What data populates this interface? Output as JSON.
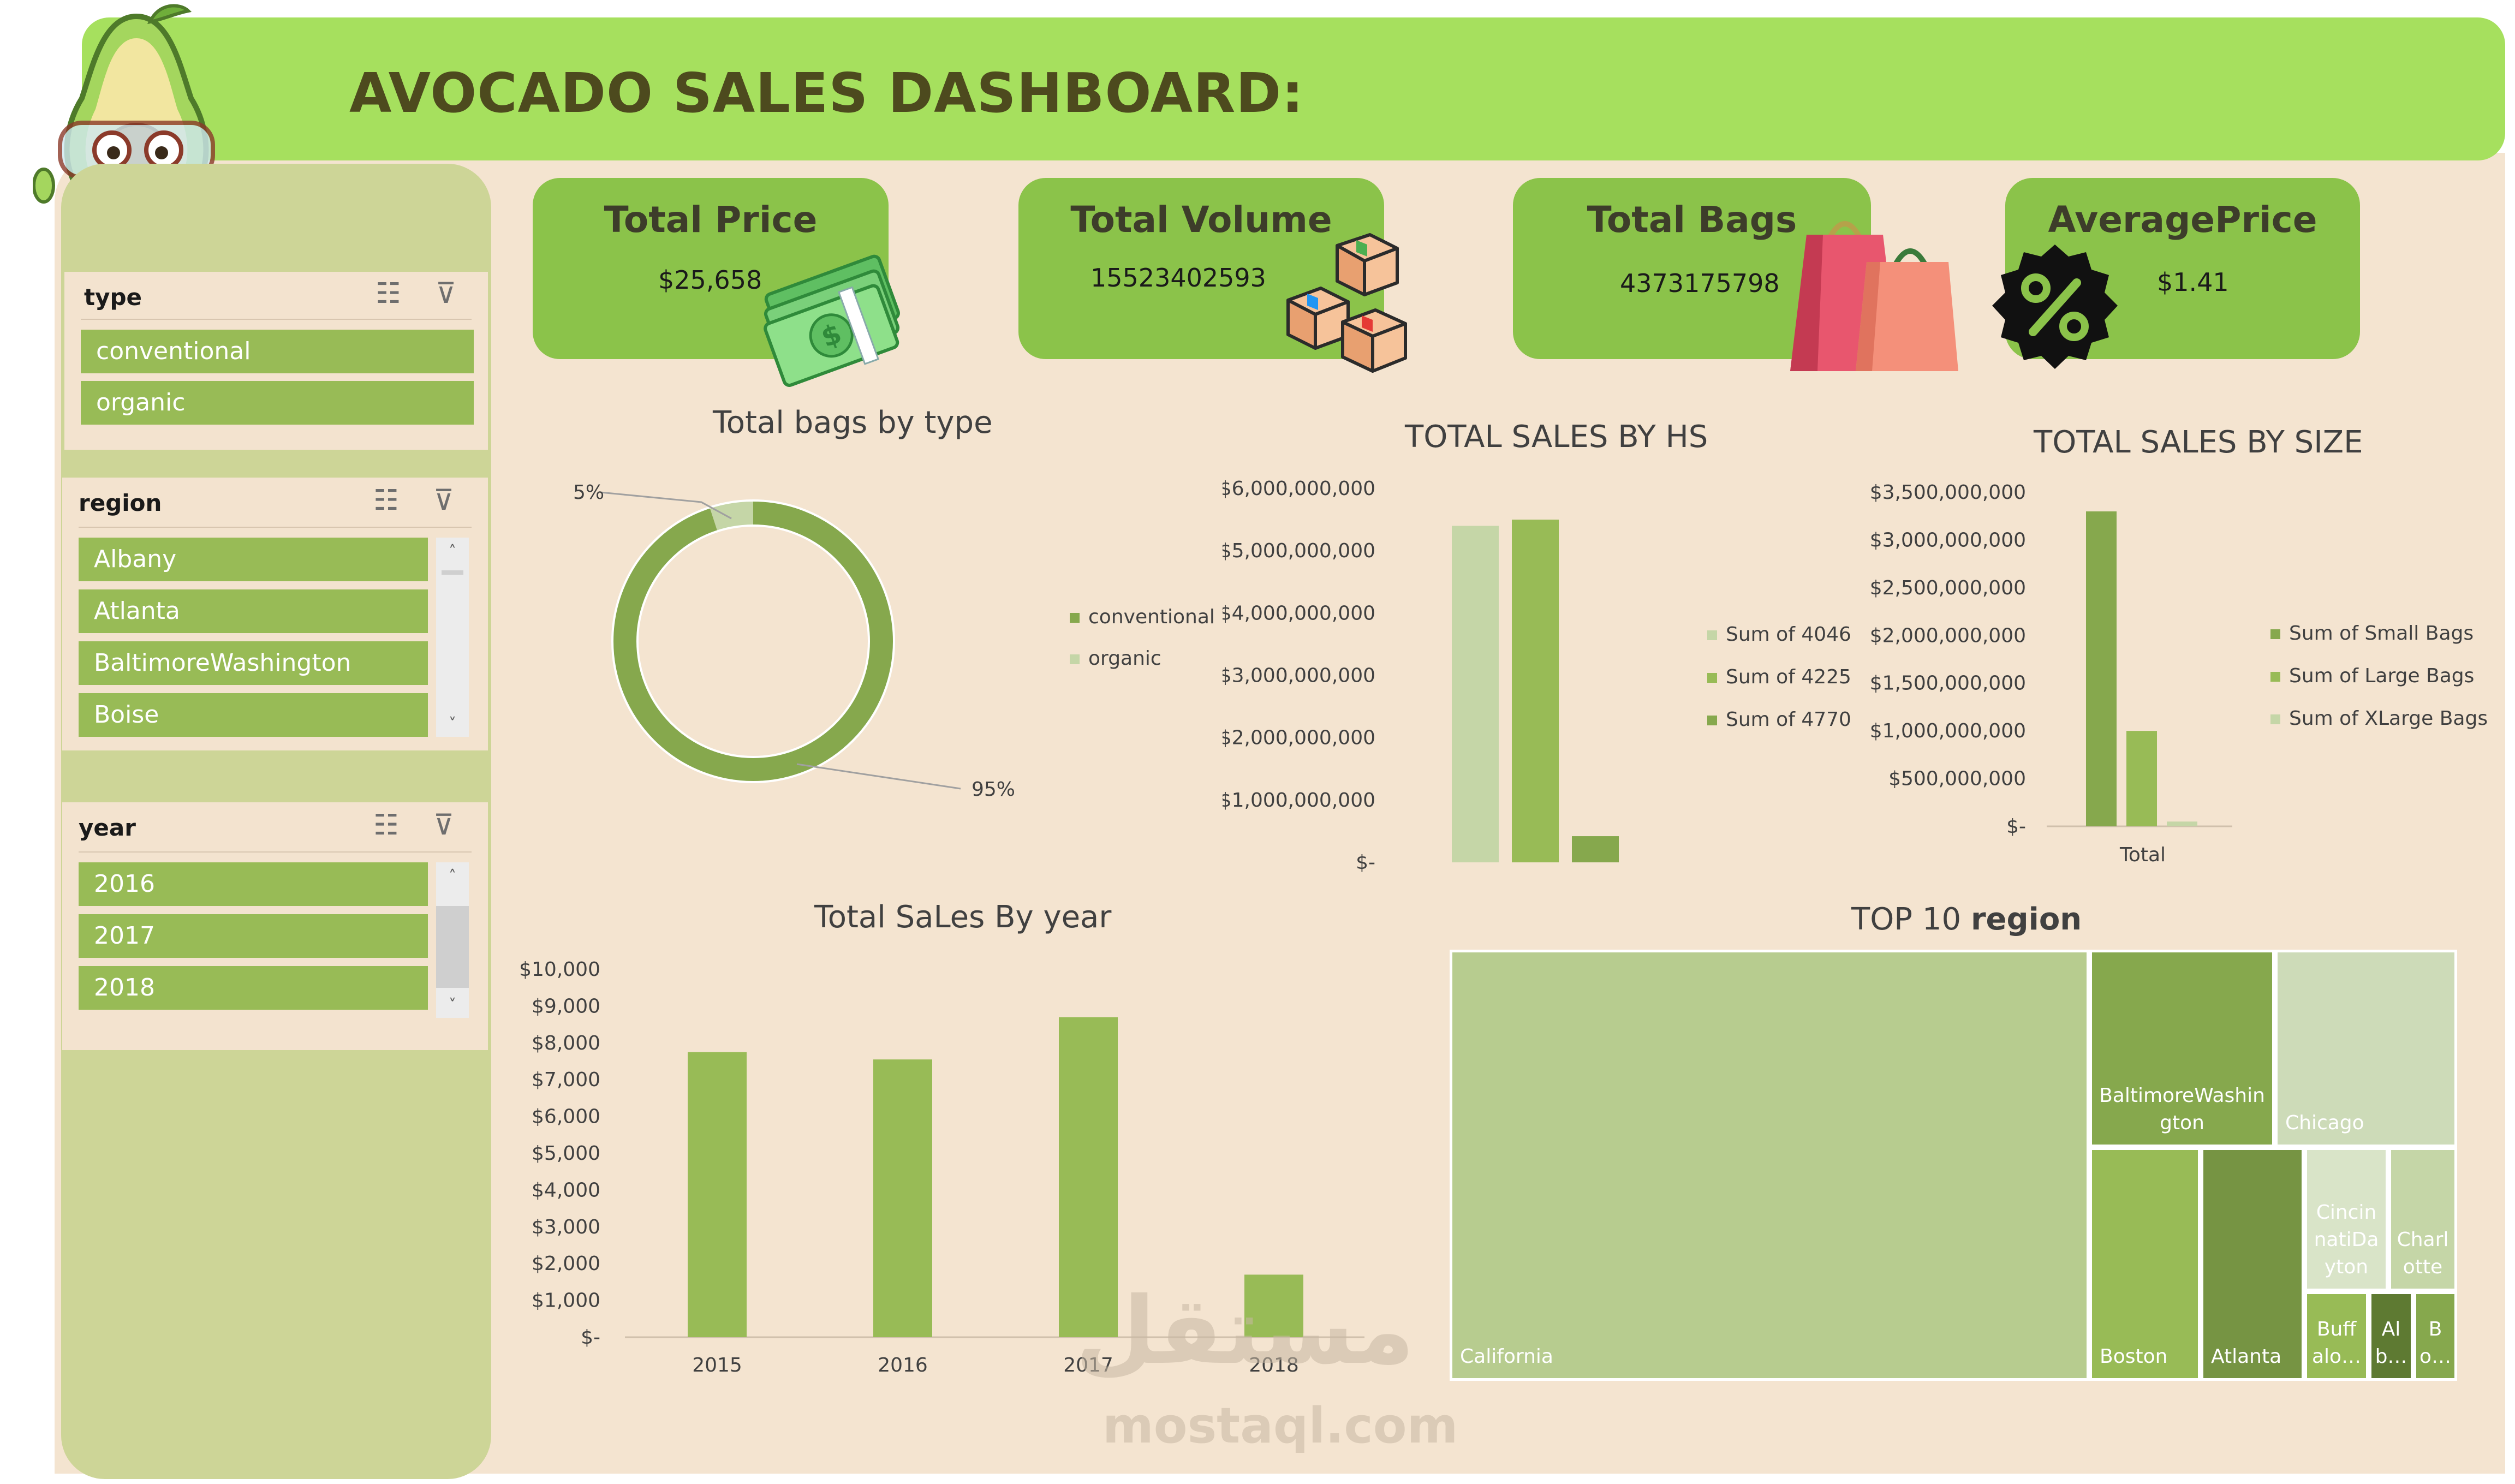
{
  "header": {
    "title": "AVOCADO SALES DASHBOARD:"
  },
  "kpis": [
    {
      "title": "Total Price",
      "value": "$25,658",
      "icon": "money-stack-icon"
    },
    {
      "title": "Total Volume",
      "value": "15523402593",
      "icon": "boxes-icon"
    },
    {
      "title": "Total Bags",
      "value": "4373175798",
      "icon": "shopping-bags-icon"
    },
    {
      "title": "AveragePrice",
      "value": "$1.41",
      "icon": "percent-badge-icon"
    }
  ],
  "slicers": {
    "type": {
      "title": "type",
      "items": [
        "conventional",
        "organic"
      ]
    },
    "region": {
      "title": "region",
      "items": [
        "Albany",
        "Atlanta",
        "BaltimoreWashington",
        "Boise"
      ]
    },
    "year": {
      "title": "year",
      "items": [
        "2016",
        "2017",
        "2018"
      ]
    }
  },
  "colors": {
    "dark_green": "#86a84d",
    "mid_green": "#98bb56",
    "light_green": "#c5d6a7",
    "header_green": "#a6e05e",
    "card_green": "#8bc34a"
  },
  "chart_data": [
    {
      "type": "pie",
      "title": "Total bags by type",
      "labels": [
        "conventional",
        "organic"
      ],
      "values": [
        95,
        5
      ],
      "data_labels": [
        "95%",
        "5%"
      ],
      "legend": "right"
    },
    {
      "type": "bar",
      "title": "TOTAL SALES BY HS",
      "series": [
        {
          "name": "Sum of 4046",
          "values": [
            5400000000
          ]
        },
        {
          "name": "Sum of 4225",
          "values": [
            5500000000
          ]
        },
        {
          "name": "Sum of 4770",
          "values": [
            420000000
          ]
        }
      ],
      "ylim": [
        0,
        6000000000
      ],
      "yticks": [
        "$-",
        "$1,000,000,000",
        "$2,000,000,000",
        "$3,000,000,000",
        "$4,000,000,000",
        "$5,000,000,000",
        "$6,000,000,000"
      ],
      "legend": "right"
    },
    {
      "type": "bar",
      "title": "TOTAL SALES BY SIZE",
      "categories": [
        "Total"
      ],
      "series": [
        {
          "name": "Sum of Small Bags",
          "values": [
            3300000000
          ]
        },
        {
          "name": "Sum of Large Bags",
          "values": [
            1000000000
          ]
        },
        {
          "name": "Sum of XLarge Bags",
          "values": [
            50000000
          ]
        }
      ],
      "ylim": [
        0,
        3500000000
      ],
      "yticks": [
        "$-",
        "$500,000,000",
        "$1,000,000,000",
        "$1,500,000,000",
        "$2,000,000,000",
        "$2,500,000,000",
        "$3,000,000,000",
        "$3,500,000,000"
      ],
      "legend": "right"
    },
    {
      "type": "bar",
      "title": "Total SaLes By year",
      "categories": [
        "2015",
        "2016",
        "2017",
        "2018"
      ],
      "values": [
        7750,
        7550,
        8700,
        1700
      ],
      "ylim": [
        0,
        10000
      ],
      "yticks": [
        "$-",
        "$1,000",
        "$2,000",
        "$3,000",
        "$4,000",
        "$5,000",
        "$6,000",
        "$7,000",
        "$8,000",
        "$9,000",
        "$10,000"
      ]
    },
    {
      "type": "treemap",
      "title_prefix": "TOP 10",
      "title_bold": "region",
      "labels": [
        "California",
        "BaltimoreWashington",
        "Chicago",
        "Boston",
        "Atlanta",
        "CincinnatiDayton",
        "Charlotte",
        "BuffaloRochester",
        "Albany",
        "Boise"
      ],
      "display_labels": [
        "California",
        "BaltimoreWashin gton",
        "Chicago",
        "Boston",
        "Atlanta",
        "Cincin natiDa yton",
        "Charl otte",
        "Buff alo…",
        "Al b…",
        "B o…"
      ],
      "colors": [
        "#b7cc8f",
        "#86a84d",
        "#cddbb8",
        "#98bb56",
        "#769443",
        "#d9e4c8",
        "#c5d6a7",
        "#98bb56",
        "#5e7a32",
        "#86a84d"
      ]
    }
  ],
  "watermark": {
    "arabic": "مستقل",
    "latin": "mostaql.com"
  }
}
